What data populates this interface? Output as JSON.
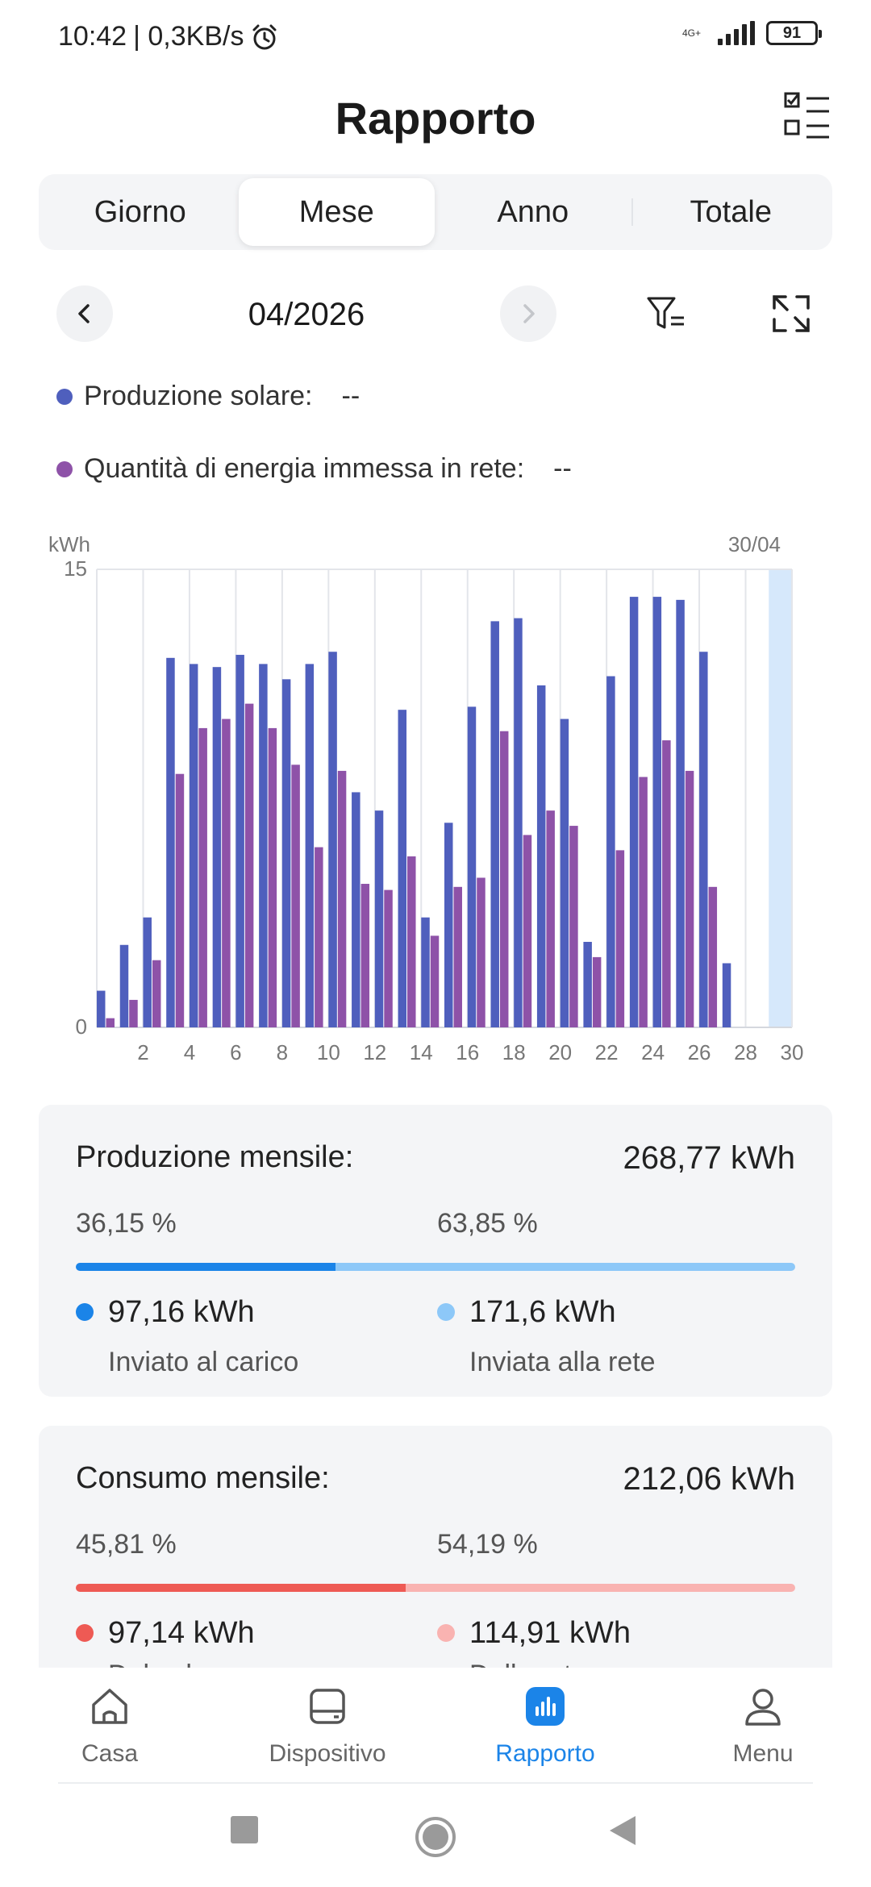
{
  "status_bar": {
    "time": "10:42",
    "speed": "| 0,3KB/s",
    "network": "4G+",
    "battery": "91"
  },
  "header": {
    "title": "Rapporto"
  },
  "tabs": [
    {
      "label": "Giorno",
      "active": false
    },
    {
      "label": "Mese",
      "active": true
    },
    {
      "label": "Anno",
      "active": false
    },
    {
      "label": "Totale",
      "active": false
    }
  ],
  "date_nav": {
    "current": "04/2026"
  },
  "legend": [
    {
      "label": "Produzione solare:",
      "value": "--",
      "color": "#4f5fbd"
    },
    {
      "label": "Quantità di energia immessa in rete:",
      "value": "--",
      "color": "#8e52a8"
    }
  ],
  "chart_data": {
    "type": "bar",
    "unit_label": "kWh",
    "selected_date_label": "30/04",
    "ylim": [
      0,
      15
    ],
    "y_tick_labels": [
      "0",
      "15"
    ],
    "x": [
      1,
      2,
      3,
      4,
      5,
      6,
      7,
      8,
      9,
      10,
      11,
      12,
      13,
      14,
      15,
      16,
      17,
      18,
      19,
      20,
      21,
      22,
      23,
      24,
      25,
      26,
      27,
      28,
      29,
      30
    ],
    "x_tick_labels": [
      "2",
      "4",
      "6",
      "8",
      "10",
      "12",
      "14",
      "16",
      "18",
      "20",
      "22",
      "24",
      "26",
      "28",
      "30"
    ],
    "selected_day": 30,
    "series": [
      {
        "name": "Produzione solare",
        "color": "#4f5fbd",
        "values": [
          1.2,
          2.7,
          3.6,
          12.1,
          11.9,
          11.8,
          12.2,
          11.9,
          11.4,
          11.9,
          12.3,
          7.7,
          7.1,
          10.4,
          3.6,
          6.7,
          10.5,
          13.3,
          13.4,
          11.2,
          10.1,
          2.8,
          11.5,
          14.1,
          14.1,
          14.0,
          12.3,
          2.1,
          0,
          0
        ]
      },
      {
        "name": "Quantità di energia immessa in rete",
        "color": "#8e52a8",
        "values": [
          0.3,
          0.9,
          2.2,
          8.3,
          9.8,
          10.1,
          10.6,
          9.8,
          8.6,
          5.9,
          8.4,
          4.7,
          4.5,
          5.6,
          3.0,
          4.6,
          4.9,
          9.7,
          6.3,
          7.1,
          6.6,
          2.3,
          5.8,
          8.2,
          9.4,
          8.4,
          4.6,
          0,
          0,
          0
        ]
      }
    ]
  },
  "production_card": {
    "title": "Produzione mensile:",
    "total": "268,77 kWh",
    "left": {
      "percent_label": "36,15 %",
      "fraction": 0.3615,
      "value": "97,16 kWh",
      "label": "Inviato al carico",
      "color": "#1b84e8"
    },
    "right": {
      "percent_label": "63,85 %",
      "value": "171,6 kWh",
      "label": "Inviata alla rete",
      "color": "#8dc8f8"
    }
  },
  "consumption_card": {
    "title": "Consumo mensile:",
    "total": "212,06 kWh",
    "left": {
      "percent_label": "45,81 %",
      "fraction": 0.4581,
      "value": "97,14 kWh",
      "label": "Dal solare",
      "color": "#ee5a54"
    },
    "right": {
      "percent_label": "54,19 %",
      "value": "114,91 kWh",
      "label": "Dalla rete",
      "color": "#f9b3b1"
    }
  },
  "bottom_nav": [
    {
      "label": "Casa",
      "icon": "home-icon",
      "active": false
    },
    {
      "label": "Dispositivo",
      "icon": "device-icon",
      "active": false
    },
    {
      "label": "Rapporto",
      "icon": "report-icon",
      "active": true
    },
    {
      "label": "Menu",
      "icon": "user-icon",
      "active": false
    }
  ],
  "colors": {
    "accent": "#1b84e8",
    "selected_band": "#d6e8fb"
  }
}
